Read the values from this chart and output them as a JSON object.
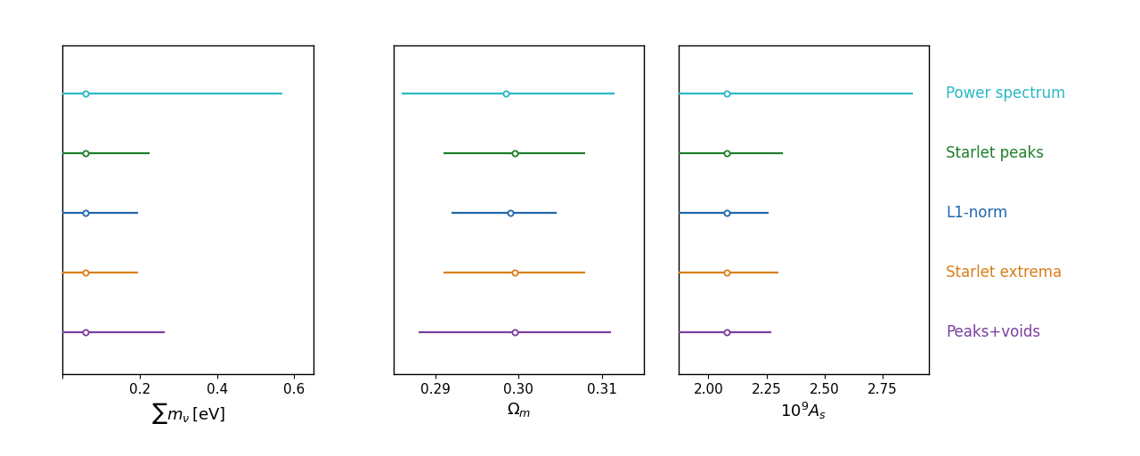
{
  "methods": [
    "Power spectrum",
    "Starlet peaks",
    "L1-norm",
    "Starlet extrema",
    "Peaks+voids"
  ],
  "colors": [
    "#29b8c5",
    "#1f7f2c",
    "#2166ac",
    "#d97e1a",
    "#7b3fa0"
  ],
  "panels": [
    {
      "xlabel": "$\\sum m_{\\nu}\\,[\\mathrm{eV}]$",
      "xlim": [
        0.0,
        0.65
      ],
      "xticks": [
        0.0,
        0.2,
        0.4,
        0.6
      ],
      "xticklabels": [
        "",
        "0.2",
        "0.4",
        "0.6"
      ],
      "centers": [
        0.06,
        0.06,
        0.06,
        0.06,
        0.06
      ],
      "upper": [
        0.57,
        0.225,
        0.195,
        0.195,
        0.265
      ],
      "lower": [
        0.0,
        0.0,
        0.0,
        0.0,
        0.0
      ]
    },
    {
      "xlabel": "$\\Omega_m$",
      "xlim": [
        0.285,
        0.315
      ],
      "xticks": [
        0.29,
        0.3,
        0.31
      ],
      "xticklabels": [
        "0.29",
        "0.30",
        "0.31"
      ],
      "centers": [
        0.2985,
        0.2995,
        0.299,
        0.2995,
        0.2995
      ],
      "upper": [
        0.3115,
        0.308,
        0.3045,
        0.308,
        0.311
      ],
      "lower": [
        0.286,
        0.291,
        0.292,
        0.291,
        0.288
      ]
    },
    {
      "xlabel": "$10^9 A_s$",
      "xlim": [
        1.87,
        2.95
      ],
      "xticks": [
        2.0,
        2.25,
        2.5,
        2.75
      ],
      "xticklabels": [
        "2.00",
        "2.25",
        "2.50",
        "2.75"
      ],
      "centers": [
        2.08,
        2.08,
        2.08,
        2.08,
        2.08
      ],
      "upper": [
        2.88,
        2.32,
        2.26,
        2.3,
        2.27
      ],
      "lower": [
        1.87,
        1.87,
        1.87,
        1.87,
        1.87
      ]
    }
  ],
  "y_positions": [
    5,
    4,
    3,
    2,
    1
  ],
  "y_gap": 0.9,
  "ylim": [
    0.3,
    5.8
  ],
  "markersize": 4.5,
  "linewidth": 1.6,
  "background_color": "#ffffff",
  "legend_fontsize": 12,
  "xlabel_fontsize": 13,
  "tick_fontsize": 11
}
